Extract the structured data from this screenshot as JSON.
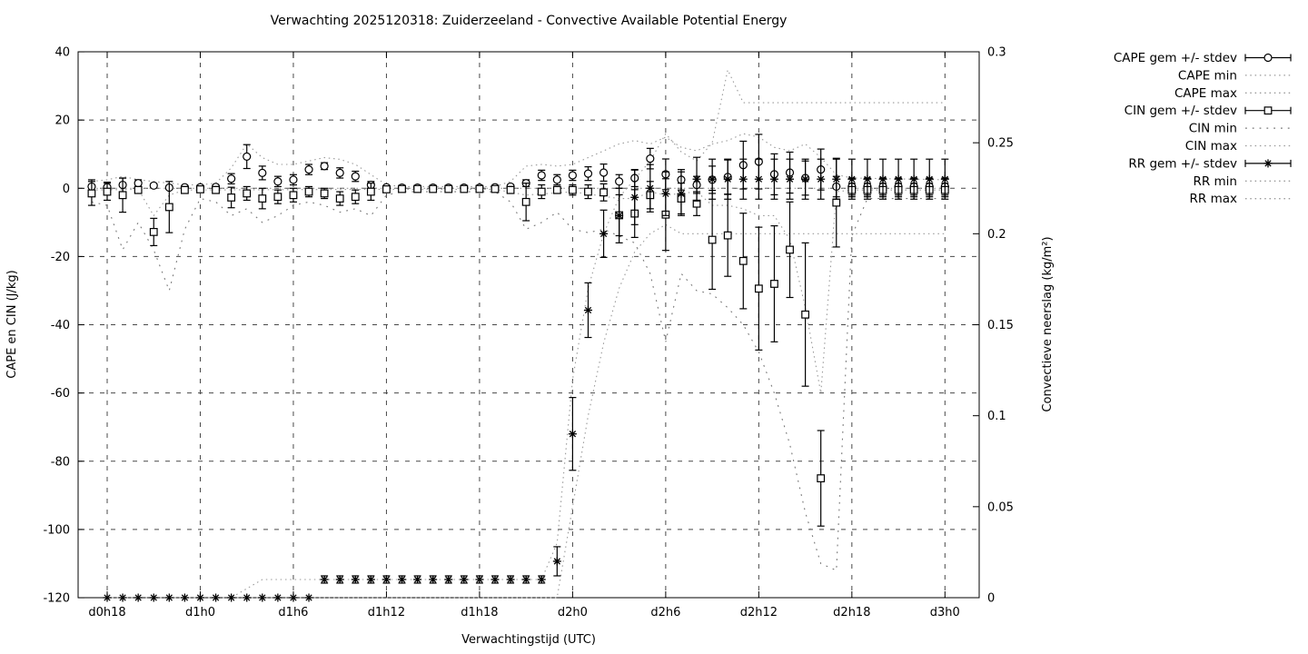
{
  "chart_data": {
    "type": "line",
    "subtype": "errorbars-with-minmax-envelopes",
    "title": "Verwachting 2025120318: Zuiderzeeland - Convective Available Potential Energy",
    "xlabel": "Verwachtingstijd (UTC)",
    "ylabel_left": "CAPE en CIN (J/kg)",
    "ylabel_right": "Convectieve neerslag (kg/m²)",
    "ylim_left": [
      -120,
      40
    ],
    "ylim_right": [
      0,
      0.3
    ],
    "grid": true,
    "legend_position": "outside-top-right",
    "x_ticks": [
      {
        "index": 1,
        "label": "d0h18"
      },
      {
        "index": 7,
        "label": "d1h0"
      },
      {
        "index": 13,
        "label": "d1h6"
      },
      {
        "index": 19,
        "label": "d1h12"
      },
      {
        "index": 25,
        "label": "d1h18"
      },
      {
        "index": 31,
        "label": "d2h0"
      },
      {
        "index": 37,
        "label": "d2h6"
      },
      {
        "index": 43,
        "label": "d2h12"
      },
      {
        "index": 49,
        "label": "d2h18"
      },
      {
        "index": 55,
        "label": "d3h0"
      }
    ],
    "y_ticks_left": [
      {
        "value": 40,
        "label": "40"
      },
      {
        "value": 20,
        "label": "20"
      },
      {
        "value": 0,
        "label": "0"
      },
      {
        "value": -20,
        "label": "-20"
      },
      {
        "value": -40,
        "label": "-40"
      },
      {
        "value": -60,
        "label": "-60"
      },
      {
        "value": -80,
        "label": "-80"
      },
      {
        "value": -100,
        "label": "-100"
      },
      {
        "value": -120,
        "label": "-120"
      }
    ],
    "y_ticks_right": [
      {
        "value": 0.3,
        "label": "0.3"
      },
      {
        "value": 0.25,
        "label": "0.25"
      },
      {
        "value": 0.2,
        "label": "0.2"
      },
      {
        "value": 0.15,
        "label": "0.15"
      },
      {
        "value": 0.1,
        "label": "0.1"
      },
      {
        "value": 0.05,
        "label": "0.05"
      },
      {
        "value": 0,
        "label": "0"
      }
    ],
    "times": [
      "d0h17",
      "d0h18",
      "d0h19",
      "d0h20",
      "d0h21",
      "d0h22",
      "d0h23",
      "d1h0",
      "d1h1",
      "d1h2",
      "d1h3",
      "d1h4",
      "d1h5",
      "d1h6",
      "d1h7",
      "d1h8",
      "d1h9",
      "d1h10",
      "d1h11",
      "d1h12",
      "d1h13",
      "d1h14",
      "d1h15",
      "d1h16",
      "d1h17",
      "d1h18",
      "d1h19",
      "d1h20",
      "d1h21",
      "d1h22",
      "d1h23",
      "d2h0",
      "d2h1",
      "d2h2",
      "d2h3",
      "d2h4",
      "d2h5",
      "d2h6",
      "d2h7",
      "d2h8",
      "d2h9",
      "d2h10",
      "d2h11",
      "d2h12",
      "d2h13",
      "d2h14",
      "d2h15",
      "d2h16",
      "d2h17",
      "d2h18",
      "d2h19",
      "d2h20",
      "d2h21",
      "d2h22",
      "d2h23",
      "d3h0"
    ],
    "series": [
      {
        "id": "cape_mean",
        "name": "CAPE gem +/- stdev",
        "axis": "left",
        "type": "errorbar",
        "marker": "circle",
        "mean": [
          0.5,
          0.3,
          1.0,
          1.5,
          0.8,
          0.2,
          0.3,
          0.3,
          0.4,
          2.8,
          9.3,
          4.5,
          2.0,
          2.5,
          5.5,
          6.5,
          4.5,
          3.5,
          1.0,
          0.3,
          0.2,
          0.2,
          0.2,
          0.2,
          0.2,
          0.2,
          0.3,
          0.5,
          1.5,
          3.8,
          2.5,
          3.8,
          4.3,
          4.6,
          2.0,
          3.0,
          8.7,
          4.1,
          2.5,
          1.0,
          2.5,
          3.3,
          6.8,
          7.8,
          4.1,
          4.6,
          3.0,
          5.5,
          0.5,
          0.5,
          0.5,
          0.5,
          0.5,
          0.5,
          0.5,
          0.5
        ],
        "stdev": [
          2.0,
          1.5,
          2.0,
          1.0,
          0.5,
          0.5,
          0.3,
          0.3,
          0.5,
          1.5,
          3.5,
          2.0,
          1.5,
          1.5,
          1.5,
          1.0,
          1.5,
          1.5,
          1.0,
          0.3,
          0.3,
          0.3,
          0.3,
          0.3,
          0.3,
          0.3,
          0.3,
          0.5,
          1.0,
          1.5,
          1.5,
          1.5,
          2.0,
          2.5,
          2.0,
          2.5,
          3.0,
          4.5,
          3.0,
          2.5,
          4.0,
          5.0,
          7.0,
          8.0,
          6.0,
          6.0,
          5.0,
          6.0,
          3.0,
          2.5,
          2.5,
          2.5,
          2.5,
          2.5,
          2.5,
          2.5
        ]
      },
      {
        "id": "cape_min",
        "name": "CAPE min",
        "axis": "left",
        "type": "dotted",
        "style": "fine",
        "points": [
          [
            0,
            0
          ],
          [
            55,
            0
          ]
        ]
      },
      {
        "id": "cape_max",
        "name": "CAPE max",
        "axis": "left",
        "type": "dotted",
        "style": "fine",
        "points": [
          [
            0,
            2
          ],
          [
            1,
            2.5
          ],
          [
            2,
            3.5
          ],
          [
            3,
            2.5
          ],
          [
            4,
            2
          ],
          [
            5,
            1.5
          ],
          [
            6,
            1
          ],
          [
            7,
            1
          ],
          [
            8,
            1.5
          ],
          [
            9,
            6
          ],
          [
            10,
            13
          ],
          [
            11,
            9
          ],
          [
            12,
            7
          ],
          [
            13,
            7
          ],
          [
            14,
            8
          ],
          [
            15,
            9
          ],
          [
            16,
            8.5
          ],
          [
            17,
            7
          ],
          [
            18,
            4
          ],
          [
            19,
            1
          ],
          [
            20,
            0.5
          ],
          [
            26,
            0.5
          ],
          [
            27,
            2
          ],
          [
            28,
            6.5
          ],
          [
            29,
            7
          ],
          [
            30,
            6.5
          ],
          [
            31,
            7
          ],
          [
            32,
            9
          ],
          [
            33,
            11
          ],
          [
            34,
            13
          ],
          [
            35,
            14
          ],
          [
            36,
            13
          ],
          [
            37,
            15
          ],
          [
            38,
            12
          ],
          [
            39,
            11
          ],
          [
            40,
            13
          ],
          [
            41,
            14
          ],
          [
            42,
            16
          ],
          [
            43,
            15
          ],
          [
            44,
            12
          ],
          [
            45,
            11
          ],
          [
            46,
            13
          ],
          [
            47,
            9
          ],
          [
            48,
            4
          ],
          [
            49,
            3
          ],
          [
            55,
            2.5
          ]
        ]
      },
      {
        "id": "cin_mean",
        "name": "CIN gem +/- stdev",
        "axis": "left",
        "type": "errorbar",
        "marker": "square",
        "mean": [
          -1.5,
          -1.0,
          -2.0,
          -0.5,
          -12.8,
          -5.5,
          -0.5,
          -0.3,
          -0.5,
          -2.7,
          -1.5,
          -3.0,
          -2.5,
          -2.0,
          -1.0,
          -1.5,
          -3.0,
          -2.5,
          -1.0,
          -0.3,
          -0.2,
          -0.2,
          -0.2,
          -0.2,
          -0.2,
          -0.2,
          -0.2,
          -0.5,
          -4.0,
          -1.0,
          -0.5,
          -0.5,
          -1.0,
          -1.2,
          -7.9,
          -7.4,
          -2.0,
          -7.7,
          -3.0,
          -4.5,
          -15.1,
          -13.8,
          -21.3,
          -29.4,
          -28.0,
          -18.0,
          -37.0,
          -85.0,
          -4.2,
          -0.5,
          -0.5,
          -0.5,
          -0.5,
          -0.5,
          -0.5,
          -0.5
        ],
        "stdev": [
          3.5,
          2.5,
          5.0,
          1.0,
          4.0,
          7.5,
          1.0,
          0.5,
          1.0,
          3.0,
          2.0,
          3.0,
          2.0,
          2.0,
          1.5,
          1.5,
          2.0,
          2.0,
          2.5,
          0.5,
          0.3,
          0.3,
          0.3,
          0.3,
          0.3,
          0.3,
          0.3,
          1.0,
          5.5,
          2.0,
          1.0,
          1.5,
          2.0,
          2.5,
          6.0,
          7.0,
          4.0,
          10.5,
          4.5,
          3.5,
          14.5,
          12.0,
          14.0,
          18.0,
          17.0,
          14.0,
          21.0,
          14.0,
          13.0,
          2.0,
          2.0,
          2.0,
          2.0,
          2.0,
          2.0,
          2.0
        ]
      },
      {
        "id": "cin_min",
        "name": "CIN min",
        "axis": "left",
        "type": "dotted",
        "style": "sparse",
        "points": [
          [
            0,
            -4
          ],
          [
            1,
            -5
          ],
          [
            2,
            -18
          ],
          [
            3,
            -10
          ],
          [
            4,
            -18
          ],
          [
            5,
            -30
          ],
          [
            6,
            -12
          ],
          [
            7,
            -3
          ],
          [
            8,
            -4
          ],
          [
            9,
            -8
          ],
          [
            10,
            -6
          ],
          [
            11,
            -10
          ],
          [
            12,
            -8
          ],
          [
            13,
            -5
          ],
          [
            14,
            -4
          ],
          [
            15,
            -5
          ],
          [
            16,
            -7
          ],
          [
            17,
            -6
          ],
          [
            18,
            -8
          ],
          [
            19,
            -2
          ],
          [
            20,
            -1
          ],
          [
            26,
            -1
          ],
          [
            27,
            -4
          ],
          [
            28,
            -12
          ],
          [
            29,
            -10
          ],
          [
            30,
            -7
          ],
          [
            31,
            -12
          ],
          [
            32,
            -13
          ],
          [
            33,
            -12
          ],
          [
            34,
            -14
          ],
          [
            35,
            -16
          ],
          [
            36,
            -25
          ],
          [
            37,
            -45
          ],
          [
            38,
            -25
          ],
          [
            39,
            -30
          ],
          [
            40,
            -31
          ],
          [
            41,
            -35
          ],
          [
            42,
            -40
          ],
          [
            43,
            -48
          ],
          [
            44,
            -60
          ],
          [
            45,
            -75
          ],
          [
            46,
            -95
          ],
          [
            47,
            -110
          ],
          [
            48,
            -112
          ],
          [
            49,
            -14
          ],
          [
            50,
            -3
          ],
          [
            55,
            -3
          ]
        ]
      },
      {
        "id": "cin_max",
        "name": "CIN max",
        "axis": "left",
        "type": "dotted",
        "style": "fine",
        "points": [
          [
            0,
            -0.5
          ],
          [
            3,
            -0.3
          ],
          [
            4,
            -8
          ],
          [
            5,
            -2
          ],
          [
            6,
            -0.5
          ],
          [
            19,
            -0.3
          ],
          [
            26,
            -0.3
          ],
          [
            28,
            -2
          ],
          [
            31,
            -1
          ],
          [
            34,
            -3
          ],
          [
            35,
            -3
          ],
          [
            36,
            -1
          ],
          [
            37,
            -2
          ],
          [
            39,
            -1
          ],
          [
            40,
            -5
          ],
          [
            41,
            -5
          ],
          [
            42,
            -6
          ],
          [
            43,
            -8
          ],
          [
            44,
            -8
          ],
          [
            45,
            -15
          ],
          [
            46,
            -35
          ],
          [
            47,
            -60
          ],
          [
            48,
            -1
          ],
          [
            49,
            -0.5
          ],
          [
            55,
            -0.5
          ]
        ]
      },
      {
        "id": "rr_mean",
        "name": "RR gem +/- stdev",
        "axis": "right",
        "type": "errorbar",
        "marker": "star",
        "mean": [
          null,
          0,
          0,
          0,
          0,
          0,
          0,
          0,
          0,
          0,
          0,
          0,
          0,
          0,
          0,
          0.01,
          0.01,
          0.01,
          0.01,
          0.01,
          0.01,
          0.01,
          0.01,
          0.01,
          0.01,
          0.01,
          0.01,
          0.01,
          0.01,
          0.01,
          0.02,
          0.09,
          0.158,
          0.2,
          0.21,
          0.22,
          0.225,
          0.222,
          0.222,
          0.23,
          0.23,
          0.23,
          0.23,
          0.23,
          0.23,
          0.23,
          0.23,
          0.23,
          0.23,
          0.23,
          0.23,
          0.23,
          0.23,
          0.23,
          0.23,
          0.23
        ],
        "stdev": [
          null,
          0,
          0,
          0,
          0,
          0,
          0,
          0,
          0,
          0,
          0,
          0,
          0,
          0,
          0,
          0.002,
          0.002,
          0.002,
          0.002,
          0.002,
          0.002,
          0.002,
          0.002,
          0.002,
          0.002,
          0.002,
          0.002,
          0.002,
          0.002,
          0.002,
          0.008,
          0.02,
          0.015,
          0.013,
          0.015,
          0.015,
          0.013,
          0.012,
          0.012,
          0.012,
          0.011,
          0.011,
          0.011,
          0.011,
          0.011,
          0.011,
          0.011,
          0.011,
          0.011,
          0.011,
          0.011,
          0.011,
          0.011,
          0.011,
          0.011,
          0.011
        ]
      },
      {
        "id": "rr_min",
        "name": "RR min",
        "axis": "right",
        "type": "dotted",
        "style": "fine",
        "points": [
          [
            1,
            0
          ],
          [
            30,
            0
          ],
          [
            31,
            0.05
          ],
          [
            32,
            0.1
          ],
          [
            33,
            0.14
          ],
          [
            34,
            0.17
          ],
          [
            35,
            0.19
          ],
          [
            36,
            0.2
          ],
          [
            37,
            0.205
          ],
          [
            38,
            0.2
          ],
          [
            55,
            0.2
          ]
        ]
      },
      {
        "id": "rr_max",
        "name": "RR max",
        "axis": "right",
        "type": "dotted",
        "style": "fine",
        "points": [
          [
            1,
            0
          ],
          [
            9,
            0
          ],
          [
            10,
            0.005
          ],
          [
            11,
            0.01
          ],
          [
            29,
            0.01
          ],
          [
            30,
            0.03
          ],
          [
            31,
            0.12
          ],
          [
            32,
            0.17
          ],
          [
            33,
            0.2
          ],
          [
            34,
            0.22
          ],
          [
            35,
            0.23
          ],
          [
            36,
            0.24
          ],
          [
            37,
            0.255
          ],
          [
            38,
            0.245
          ],
          [
            39,
            0.24
          ],
          [
            40,
            0.25
          ],
          [
            41,
            0.29
          ],
          [
            42,
            0.272
          ],
          [
            55,
            0.272
          ]
        ]
      }
    ],
    "colors": {
      "foreground": "#000000",
      "grid": "#2a2a2a",
      "envelope_dots": "#999999",
      "cin_min_dots": "#777777",
      "background": "#ffffff"
    }
  }
}
